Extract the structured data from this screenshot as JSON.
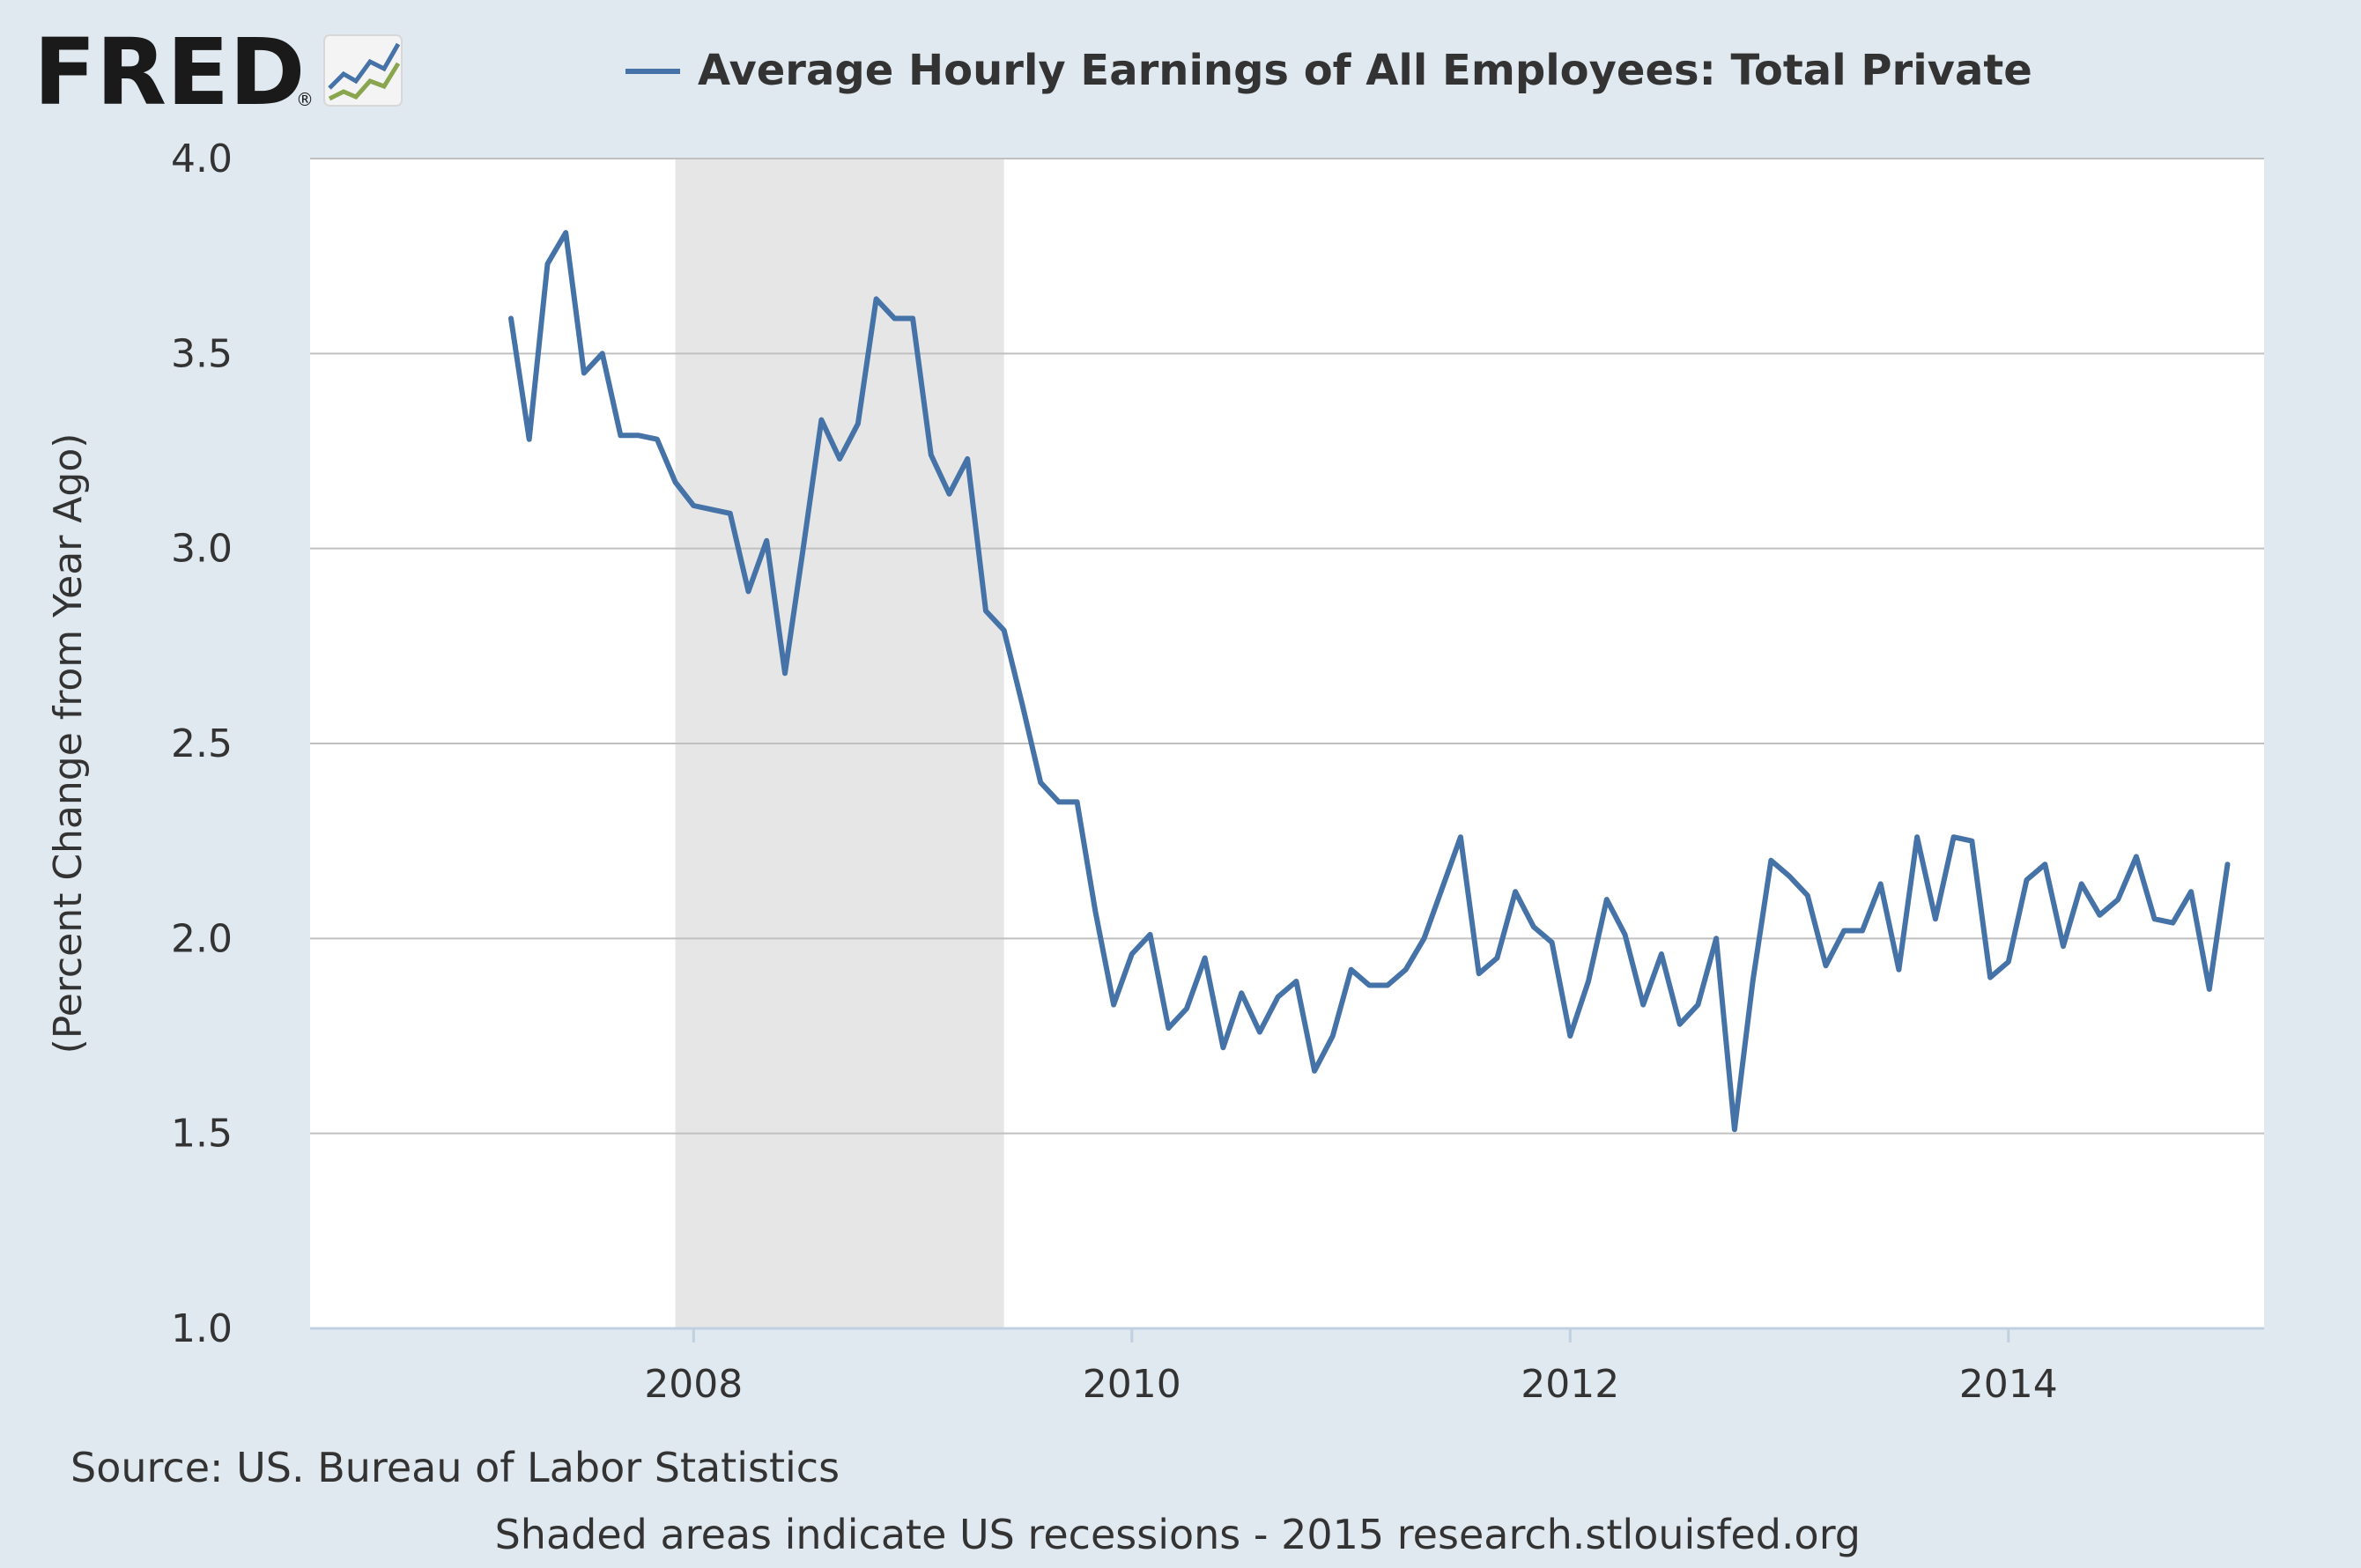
{
  "brand": {
    "name": "FRED",
    "trademark": "®",
    "logo_icon": "fred-line-chart-icon"
  },
  "legend": {
    "label": "Average Hourly Earnings of All Employees: Total Private",
    "color": "#4572a7"
  },
  "footer": {
    "source": "Source: US. Bureau of Labor Statistics",
    "note": "Shaded areas indicate US recessions - 2015 research.stlouisfed.org"
  },
  "colors": {
    "background": "#e1e9f0",
    "plot_background": "#ffffff",
    "recession_shade": "#e6e6e6",
    "gridline": "#c0c0c0",
    "series": "#4572a7"
  },
  "chart_data": {
    "type": "line",
    "title": "Average Hourly Earnings of All Employees: Total Private",
    "ylabel": "(Percent Change from Year Ago)",
    "xlabel": "",
    "ylim": [
      1.0,
      4.0
    ],
    "yticks": [
      "1.0",
      "1.5",
      "2.0",
      "2.5",
      "3.0",
      "3.5",
      "4.0"
    ],
    "xlim": [
      "2006-04",
      "2015-03"
    ],
    "xticks": [
      {
        "label": "2008",
        "date": "2008-01"
      },
      {
        "label": "2010",
        "date": "2010-01"
      },
      {
        "label": "2012",
        "date": "2012-01"
      },
      {
        "label": "2014",
        "date": "2014-01"
      }
    ],
    "grid": true,
    "legend_position": "top",
    "recessions": [
      {
        "start": "2007-12",
        "end": "2009-06"
      }
    ],
    "series": [
      {
        "name": "Average Hourly Earnings of All Employees: Total Private",
        "color": "#4572a7",
        "start": "2007-03",
        "frequency": "monthly",
        "values": [
          3.59,
          3.28,
          3.73,
          3.81,
          3.45,
          3.5,
          3.29,
          3.29,
          3.28,
          3.17,
          3.11,
          3.1,
          3.09,
          2.89,
          3.02,
          2.68,
          3.0,
          3.33,
          3.23,
          3.32,
          3.64,
          3.59,
          3.59,
          3.24,
          3.14,
          3.23,
          2.84,
          2.79,
          2.6,
          2.4,
          2.35,
          2.35,
          2.07,
          1.83,
          1.96,
          2.01,
          1.77,
          1.82,
          1.95,
          1.72,
          1.86,
          1.76,
          1.85,
          1.89,
          1.66,
          1.75,
          1.92,
          1.88,
          1.88,
          1.92,
          2.0,
          2.13,
          2.26,
          1.91,
          1.95,
          2.12,
          2.03,
          1.99,
          1.75,
          1.89,
          2.1,
          2.01,
          1.83,
          1.96,
          1.78,
          1.83,
          2.0,
          1.51,
          1.89,
          2.2,
          2.16,
          2.11,
          1.93,
          2.02,
          2.02,
          2.14,
          1.92,
          2.26,
          2.05,
          2.26,
          2.25,
          1.9,
          1.94,
          2.15,
          2.19,
          1.98,
          2.14,
          2.06,
          2.1,
          2.21,
          2.05,
          2.04,
          2.12,
          1.87,
          2.19
        ]
      }
    ]
  }
}
